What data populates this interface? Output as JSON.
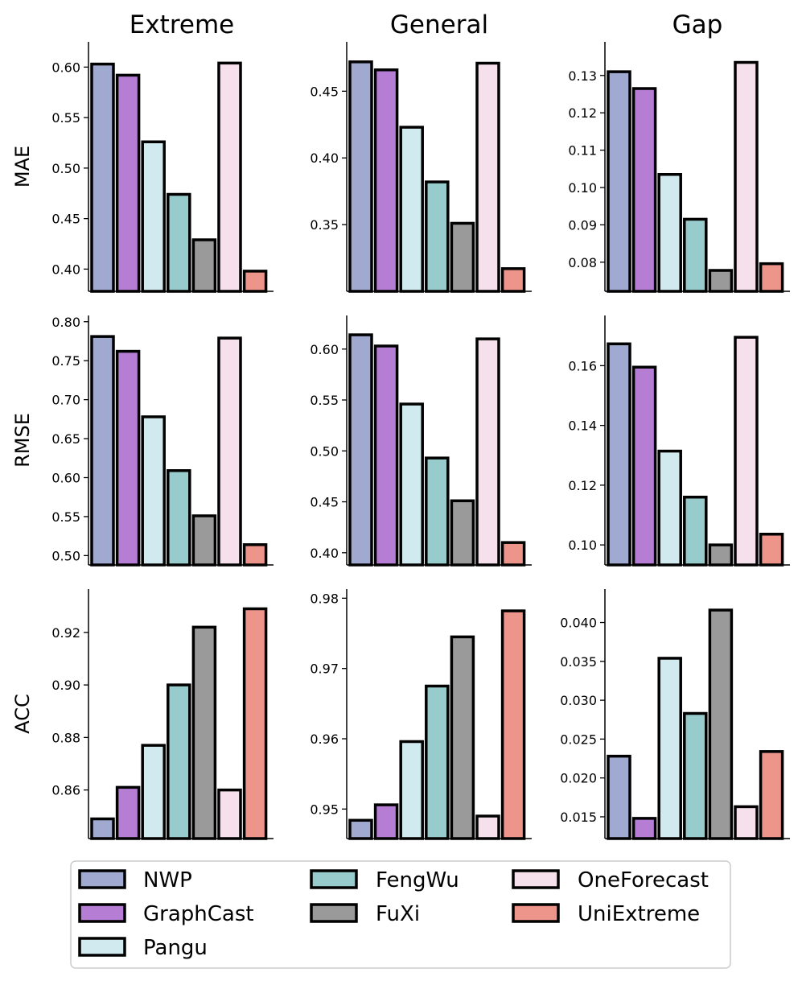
{
  "chart_data": {
    "type": "bar",
    "layout": "3x3 grid of bar charts",
    "column_titles": [
      "Extreme",
      "General",
      "Gap"
    ],
    "row_labels": [
      "MAE",
      "RMSE",
      "ACC"
    ],
    "models": [
      "NWP",
      "GraphCast",
      "Pangu",
      "FengWu",
      "FuXi",
      "OneForecast",
      "UniExtreme"
    ],
    "colors": [
      "#a0aad0",
      "#b57dd4",
      "#d0eaf0",
      "#98cbcb",
      "#9a9a9a",
      "#f5e0eb",
      "#ee958b"
    ],
    "legend": {
      "placement": "bottom",
      "columns": [
        [
          "NWP",
          "GraphCast",
          "Pangu"
        ],
        [
          "FengWu",
          "FuXi"
        ],
        [
          "OneForecast",
          "UniExtreme"
        ]
      ]
    },
    "panels": [
      [
        {
          "metric": "MAE",
          "column": "Extreme",
          "values": [
            0.603,
            0.592,
            0.526,
            0.474,
            0.429,
            0.604,
            0.398
          ],
          "ylim": [
            0.378,
            0.625
          ],
          "yticks": [
            "0.40",
            "0.45",
            "0.50",
            "0.55",
            "0.60"
          ]
        },
        {
          "metric": "MAE",
          "column": "General",
          "values": [
            0.472,
            0.466,
            0.423,
            0.382,
            0.351,
            0.471,
            0.317
          ],
          "ylim": [
            0.3,
            0.487
          ],
          "yticks": [
            "0.35",
            "0.40",
            "0.45"
          ]
        },
        {
          "metric": "MAE",
          "column": "Gap",
          "values": [
            0.131,
            0.1265,
            0.1035,
            0.0915,
            0.0778,
            0.1335,
            0.0796
          ],
          "ylim": [
            0.0722,
            0.139
          ],
          "yticks": [
            "0.08",
            "0.09",
            "0.10",
            "0.11",
            "0.12",
            "0.13"
          ]
        }
      ],
      [
        {
          "metric": "RMSE",
          "column": "Extreme",
          "values": [
            0.781,
            0.762,
            0.678,
            0.609,
            0.551,
            0.779,
            0.514
          ],
          "ylim": [
            0.488,
            0.808
          ],
          "yticks": [
            "0.50",
            "0.55",
            "0.60",
            "0.65",
            "0.70",
            "0.75",
            "0.80"
          ]
        },
        {
          "metric": "RMSE",
          "column": "General",
          "values": [
            0.614,
            0.603,
            0.546,
            0.493,
            0.451,
            0.61,
            0.41
          ],
          "ylim": [
            0.388,
            0.633
          ],
          "yticks": [
            "0.40",
            "0.45",
            "0.50",
            "0.55",
            "0.60"
          ]
        },
        {
          "metric": "RMSE",
          "column": "Gap",
          "values": [
            0.1673,
            0.1595,
            0.1314,
            0.116,
            0.1,
            0.1695,
            0.1036
          ],
          "ylim": [
            0.0933,
            0.1768
          ],
          "yticks": [
            "0.10",
            "0.12",
            "0.14",
            "0.16"
          ]
        }
      ],
      [
        {
          "metric": "ACC",
          "column": "Extreme",
          "values": [
            0.849,
            0.861,
            0.877,
            0.9,
            0.922,
            0.86,
            0.929
          ],
          "ylim": [
            0.8415,
            0.9365
          ],
          "yticks": [
            "0.86",
            "0.88",
            "0.90",
            "0.92"
          ]
        },
        {
          "metric": "ACC",
          "column": "General",
          "values": [
            0.9484,
            0.9506,
            0.9596,
            0.9675,
            0.9745,
            0.949,
            0.9782
          ],
          "ylim": [
            0.9458,
            0.9813
          ],
          "yticks": [
            "0.95",
            "0.96",
            "0.97",
            "0.98"
          ]
        },
        {
          "metric": "ACC",
          "column": "Gap",
          "values": [
            0.0228,
            0.0148,
            0.0354,
            0.0283,
            0.0416,
            0.0163,
            0.0234
          ],
          "ylim": [
            0.0122,
            0.0443
          ],
          "yticks": [
            "0.015",
            "0.020",
            "0.025",
            "0.030",
            "0.035",
            "0.040"
          ]
        }
      ]
    ]
  }
}
